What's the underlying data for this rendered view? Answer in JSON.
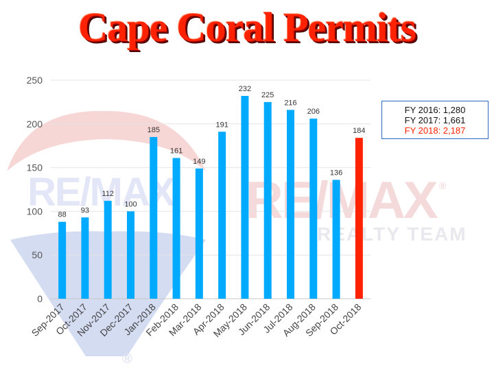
{
  "title": "Cape Coral Permits",
  "watermark": {
    "brand": "RE/MAX",
    "team": "REALTY TEAM",
    "registered": "®"
  },
  "legend": [
    {
      "label": "FY 2016: 1,280",
      "color": "#111111"
    },
    {
      "label": "FY 2017: 1,661",
      "color": "#111111"
    },
    {
      "label": "FY 2018: 2,187",
      "color": "#ff2200"
    }
  ],
  "chart_data": {
    "type": "bar",
    "title": "Cape Coral Permits",
    "xlabel": "",
    "ylabel": "",
    "ylim": [
      0,
      250
    ],
    "yticks": [
      0,
      50,
      100,
      150,
      200,
      250
    ],
    "grid": true,
    "legend_placement": "right",
    "categories": [
      "Sep-2017",
      "Oct-2017",
      "Nov-2017",
      "Dec-2017",
      "Jan-2018",
      "Feb-2018",
      "Mar-2018",
      "Apr-2018",
      "May-2018",
      "Jun-2018",
      "Jul-2018",
      "Aug-2018",
      "Sep-2018",
      "Oct-2018"
    ],
    "values": [
      88,
      93,
      112,
      100,
      185,
      161,
      149,
      191,
      232,
      225,
      216,
      206,
      136,
      184
    ],
    "bar_color": "#00aaff",
    "highlight_color": "#ff2200",
    "highlight_index": 13
  }
}
